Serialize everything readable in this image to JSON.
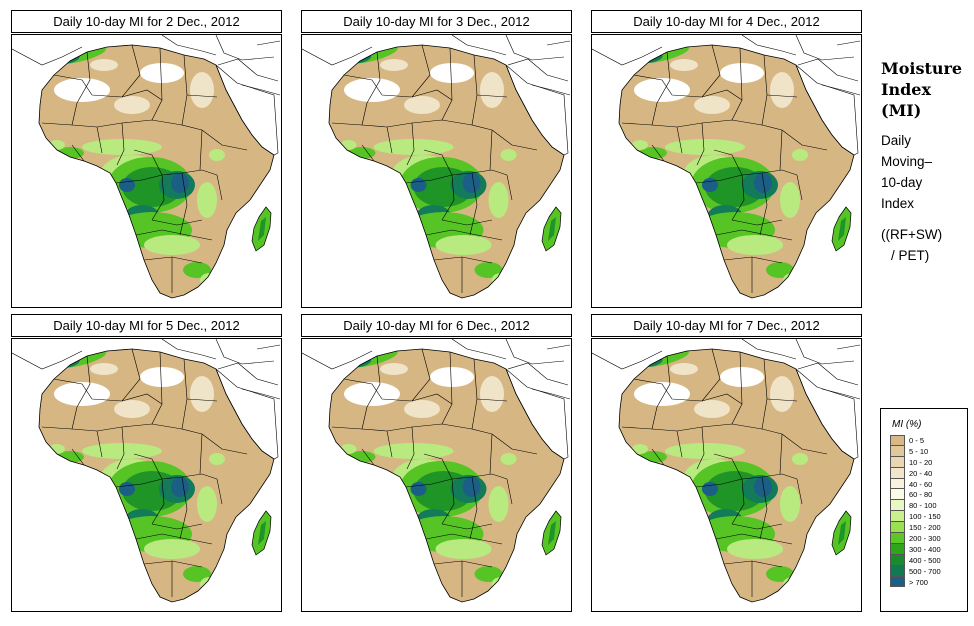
{
  "panels": [
    {
      "title": "Daily 10-day MI for  2 Dec., 2012",
      "day": 2
    },
    {
      "title": "Daily 10-day MI for  3 Dec., 2012",
      "day": 3
    },
    {
      "title": "Daily 10-day MI for  4 Dec., 2012",
      "day": 4
    },
    {
      "title": "Daily 10-day MI for  5 Dec., 2012",
      "day": 5
    },
    {
      "title": "Daily 10-day MI for  6 Dec., 2012",
      "day": 6
    },
    {
      "title": "Daily 10-day MI for  7 Dec., 2012",
      "day": 7
    }
  ],
  "sidebar": {
    "title_lines": [
      "Moisture",
      "Index",
      "(MI)"
    ],
    "desc_lines": [
      "Daily",
      "Moving–",
      "10-day",
      "Index"
    ],
    "formula_lines": [
      "((RF+SW)",
      "/ PET)"
    ]
  },
  "legend": {
    "title": "MI (%)",
    "classes": [
      {
        "label": "0 - 5",
        "color": "#d8b886"
      },
      {
        "label": "5 - 10",
        "color": "#e0c89a"
      },
      {
        "label": "10 - 20",
        "color": "#e9d7b1"
      },
      {
        "label": "20 - 40",
        "color": "#f1e6cc"
      },
      {
        "label": "40 - 60",
        "color": "#f7f1dd"
      },
      {
        "label": "60 - 80",
        "color": "#fbfae8"
      },
      {
        "label": "80 - 100",
        "color": "#e8f7c4"
      },
      {
        "label": "100 - 150",
        "color": "#c9ef8e"
      },
      {
        "label": "150 - 200",
        "color": "#99e24f"
      },
      {
        "label": "200 - 300",
        "color": "#5cc825"
      },
      {
        "label": "300 - 400",
        "color": "#2ea61b"
      },
      {
        "label": "400 - 500",
        "color": "#1a8a2c"
      },
      {
        "label": "500 - 700",
        "color": "#127a53"
      },
      {
        "label": "> 700",
        "color": "#1b5f86"
      }
    ]
  },
  "colors": {
    "desert": "#d6b784",
    "dry_white": "#ffffff",
    "semi_arid": "#efe3c8",
    "green_light": "#b8ea80",
    "green": "#56c424",
    "green_dark": "#1f9427",
    "teal": "#137a5a",
    "blue": "#1b5f86",
    "border": "#000000"
  }
}
